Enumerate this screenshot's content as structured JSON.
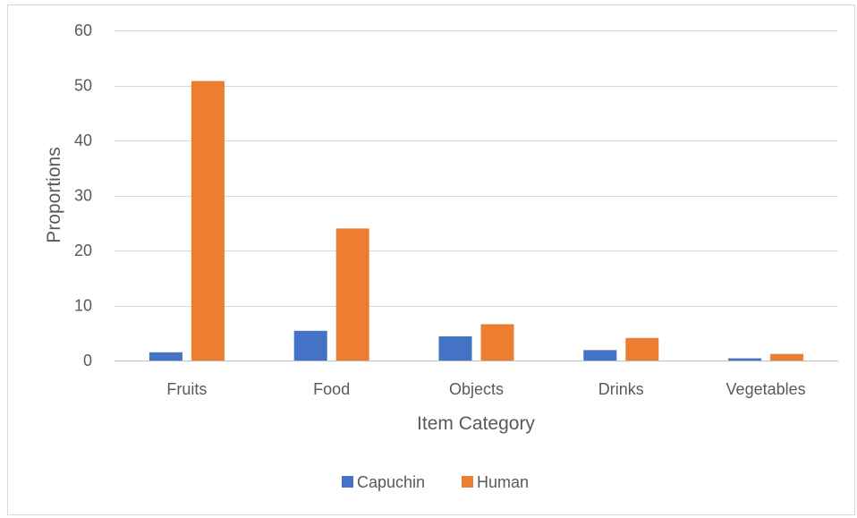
{
  "chart_data": {
    "type": "bar",
    "categories": [
      "Fruits",
      "Food",
      "Objects",
      "Drinks",
      "Vegetables"
    ],
    "series": [
      {
        "name": "Capuchin",
        "values": [
          1.5,
          5.4,
          4.4,
          1.9,
          0.4
        ],
        "color": "#4472C4"
      },
      {
        "name": "Human",
        "values": [
          50.8,
          24.0,
          6.6,
          4.1,
          1.2
        ],
        "color": "#ED7D31"
      }
    ],
    "title": "",
    "xlabel": "Item Category",
    "ylabel": "Proportions",
    "ylim": [
      0,
      60
    ],
    "yticks": [
      "0",
      "10",
      "20",
      "30",
      "40",
      "50",
      "60"
    ],
    "grid": true,
    "legend_position": "bottom"
  }
}
